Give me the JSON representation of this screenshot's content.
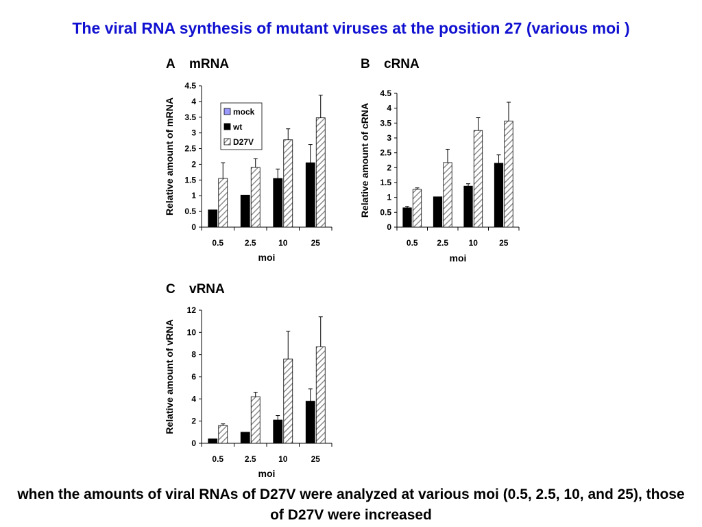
{
  "title": "The viral RNA synthesis of mutant viruses at the position 27 (various moi )",
  "caption": "when the amounts of viral RNAs of D27V were analyzed at various moi (0.5, 2.5, 10, and 25), those of D27V were increased",
  "colors": {
    "title": "#1010d0",
    "mock": "#9999ff",
    "wt": "#000000",
    "d27v_hatch": "#8c8c8c"
  },
  "chart_data": [
    {
      "type": "bar",
      "panel": "A",
      "title": "mRNA",
      "xlabel": "moi",
      "ylabel": "Relative amount of mRNA",
      "categories": [
        "0.5",
        "2.5",
        "10",
        "25"
      ],
      "ylim": [
        0,
        4.5
      ],
      "yticks": [
        "0",
        "0.5",
        "1",
        "1.5",
        "2",
        "2.5",
        "3",
        "3.5",
        "4",
        "4.5"
      ],
      "legend": [
        "mock",
        "wt",
        "D27V"
      ],
      "legend_position": "top-left",
      "series": [
        {
          "name": "wt",
          "values": [
            0.55,
            1.02,
            1.55,
            2.05
          ],
          "errors": [
            0,
            0,
            0.3,
            0.58
          ]
        },
        {
          "name": "D27V",
          "values": [
            1.55,
            1.9,
            2.78,
            3.48
          ],
          "errors": [
            0.5,
            0.28,
            0.35,
            0.72
          ]
        }
      ]
    },
    {
      "type": "bar",
      "panel": "B",
      "title": "cRNA",
      "xlabel": "moi",
      "ylabel": "Relative amount of cRNA",
      "categories": [
        "0.5",
        "2.5",
        "10",
        "25"
      ],
      "ylim": [
        0,
        4.5
      ],
      "yticks": [
        "0",
        "0.5",
        "1",
        "1.5",
        "2",
        "2.5",
        "3",
        "3.5",
        "4",
        "4.5"
      ],
      "series": [
        {
          "name": "wt",
          "values": [
            0.65,
            1.02,
            1.38,
            2.15
          ],
          "errors": [
            0.05,
            0,
            0.08,
            0.28
          ]
        },
        {
          "name": "D27V",
          "values": [
            1.27,
            2.17,
            3.25,
            3.57
          ],
          "errors": [
            0.05,
            0.45,
            0.43,
            0.63
          ]
        }
      ]
    },
    {
      "type": "bar",
      "panel": "C",
      "title": "vRNA",
      "xlabel": "moi",
      "ylabel": "Relative amount of vRNA",
      "categories": [
        "0.5",
        "2.5",
        "10",
        "25"
      ],
      "ylim": [
        0,
        12
      ],
      "yticks": [
        "0",
        "2",
        "4",
        "6",
        "8",
        "10",
        "12"
      ],
      "series": [
        {
          "name": "wt",
          "values": [
            0.4,
            1.0,
            2.1,
            3.8
          ],
          "errors": [
            0,
            0,
            0.4,
            1.1
          ]
        },
        {
          "name": "D27V",
          "values": [
            1.6,
            4.2,
            7.6,
            8.7
          ],
          "errors": [
            0.15,
            0.4,
            2.5,
            2.7
          ]
        }
      ]
    }
  ]
}
